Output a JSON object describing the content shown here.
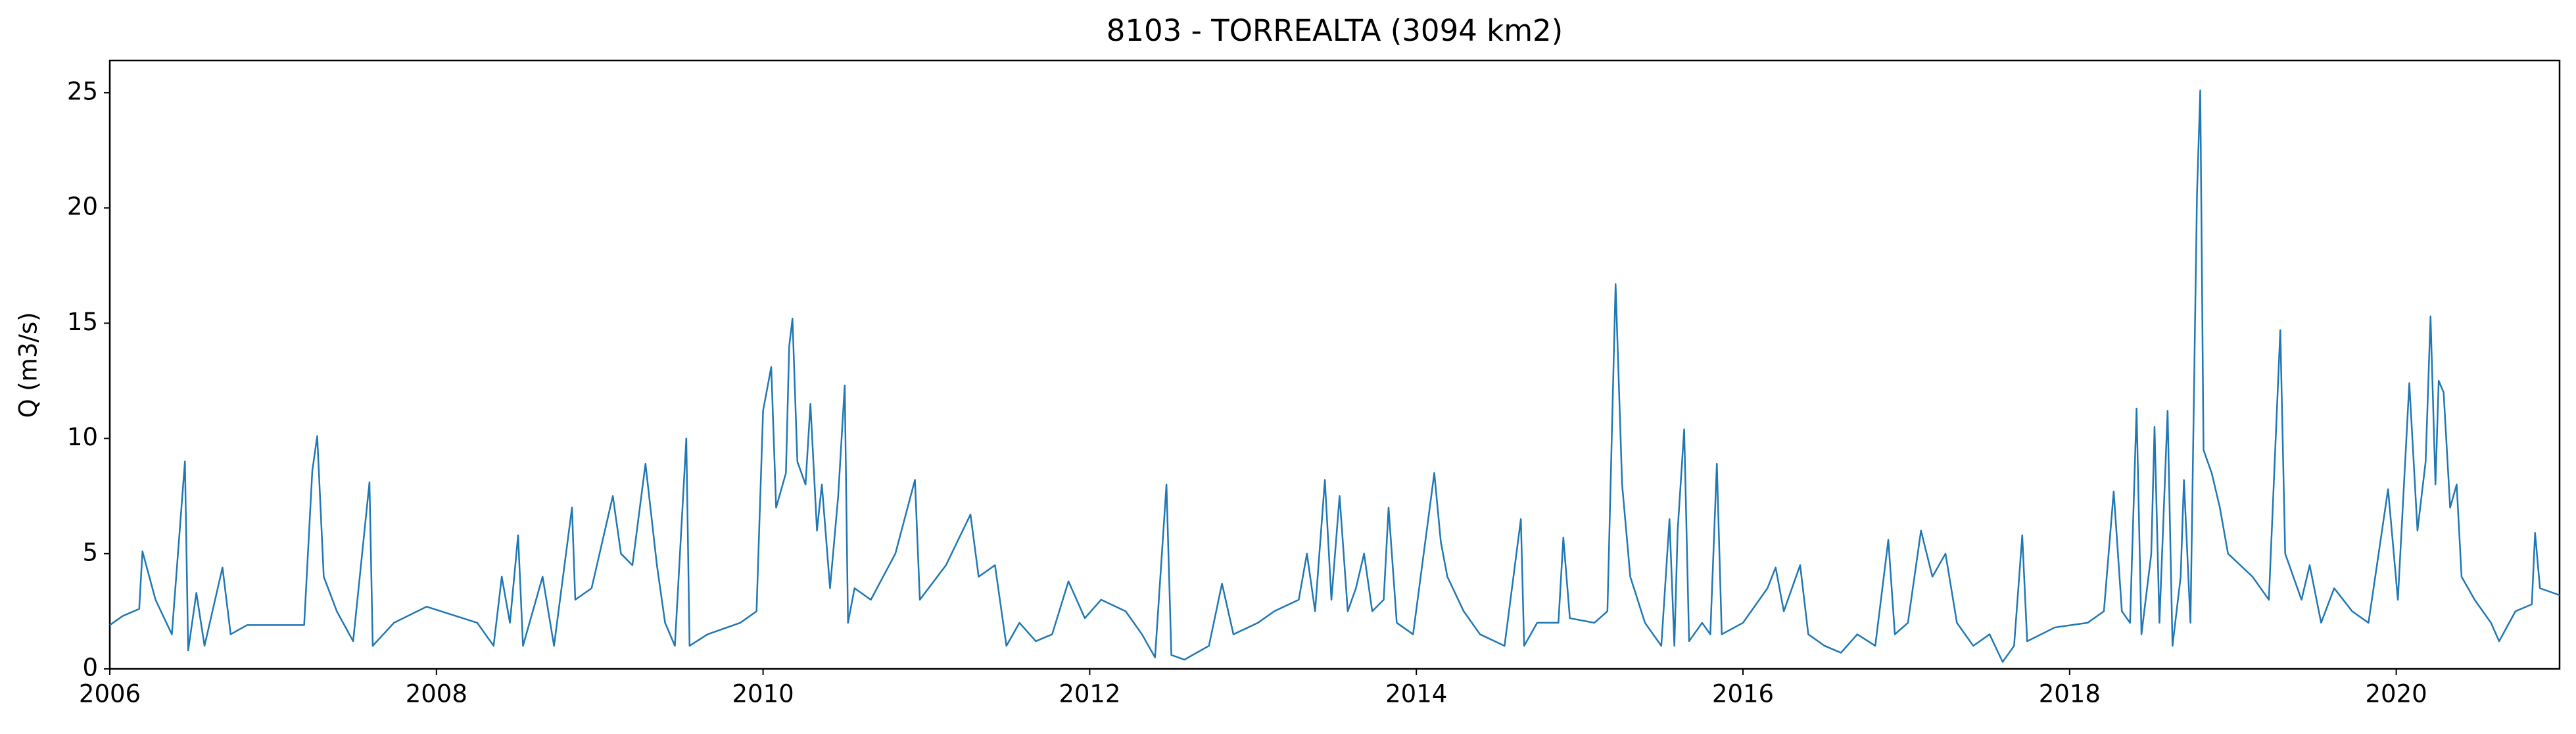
{
  "chart_data": {
    "type": "line",
    "title": "8103 - TORREALTA (3094 km2)",
    "y_label": "Q (m3/s)",
    "xlim": [
      2006,
      2021
    ],
    "xticks": [
      2006,
      2008,
      2010,
      2012,
      2014,
      2016,
      2018,
      2020
    ],
    "ylim": [
      0,
      26.4
    ],
    "yticks": [
      0,
      5,
      10,
      15,
      20,
      25
    ],
    "grid": false,
    "series": [
      {
        "color": "#1f77b4",
        "x": [
          2006.0,
          2006.08,
          2006.18,
          2006.2,
          2006.28,
          2006.38,
          2006.46,
          2006.48,
          2006.53,
          2006.58,
          2006.69,
          2006.74,
          2006.84,
          2007.19,
          2007.24,
          2007.27,
          2007.31,
          2007.39,
          2007.49,
          2007.59,
          2007.61,
          2007.74,
          2007.94,
          2008.25,
          2008.35,
          2008.4,
          2008.45,
          2008.5,
          2008.53,
          2008.65,
          2008.72,
          2008.83,
          2008.85,
          2008.95,
          2009.08,
          2009.13,
          2009.2,
          2009.28,
          2009.35,
          2009.4,
          2009.46,
          2009.53,
          2009.55,
          2009.66,
          2009.86,
          2009.96,
          2010.0,
          2010.05,
          2010.08,
          2010.14,
          2010.16,
          2010.18,
          2010.21,
          2010.26,
          2010.29,
          2010.33,
          2010.36,
          2010.41,
          2010.46,
          2010.5,
          2010.52,
          2010.56,
          2010.66,
          2010.81,
          2010.93,
          2010.96,
          2011.12,
          2011.27,
          2011.32,
          2011.42,
          2011.49,
          2011.57,
          2011.67,
          2011.77,
          2011.87,
          2011.97,
          2012.07,
          2012.22,
          2012.32,
          2012.4,
          2012.47,
          2012.5,
          2012.58,
          2012.73,
          2012.81,
          2012.88,
          2013.03,
          2013.13,
          2013.28,
          2013.33,
          2013.38,
          2013.44,
          2013.48,
          2013.53,
          2013.58,
          2013.63,
          2013.68,
          2013.73,
          2013.8,
          2013.83,
          2013.88,
          2013.98,
          2014.11,
          2014.15,
          2014.19,
          2014.29,
          2014.39,
          2014.54,
          2014.64,
          2014.66,
          2014.74,
          2014.87,
          2014.9,
          2014.94,
          2015.09,
          2015.17,
          2015.22,
          2015.26,
          2015.31,
          2015.4,
          2015.5,
          2015.55,
          2015.58,
          2015.6,
          2015.64,
          2015.67,
          2015.75,
          2015.8,
          2015.84,
          2015.87,
          2016.0,
          2016.15,
          2016.2,
          2016.25,
          2016.35,
          2016.4,
          2016.5,
          2016.6,
          2016.7,
          2016.81,
          2016.89,
          2016.93,
          2017.01,
          2017.09,
          2017.16,
          2017.24,
          2017.31,
          2017.41,
          2017.51,
          2017.59,
          2017.66,
          2017.71,
          2017.74,
          2017.91,
          2018.11,
          2018.21,
          2018.27,
          2018.32,
          2018.37,
          2018.41,
          2018.44,
          2018.5,
          2018.52,
          2018.55,
          2018.6,
          2018.63,
          2018.68,
          2018.7,
          2018.74,
          2018.78,
          2018.8,
          2018.82,
          2018.87,
          2018.92,
          2018.97,
          2019.12,
          2019.22,
          2019.29,
          2019.32,
          2019.42,
          2019.47,
          2019.54,
          2019.62,
          2019.73,
          2019.83,
          2019.95,
          2020.01,
          2020.08,
          2020.13,
          2020.18,
          2020.21,
          2020.24,
          2020.26,
          2020.29,
          2020.33,
          2020.37,
          2020.4,
          2020.48,
          2020.58,
          2020.63,
          2020.73,
          2020.83,
          2020.85,
          2020.88,
          2021.0
        ],
        "values": [
          1.9,
          2.3,
          2.6,
          5.1,
          3.0,
          1.5,
          9.0,
          0.8,
          3.3,
          1.0,
          4.4,
          1.5,
          1.9,
          1.9,
          8.6,
          10.1,
          4.0,
          2.5,
          1.2,
          8.1,
          1.0,
          2.0,
          2.7,
          2.0,
          1.0,
          4.0,
          2.0,
          5.8,
          1.0,
          4.0,
          1.0,
          7.0,
          3.0,
          3.5,
          7.5,
          5.0,
          4.5,
          8.9,
          4.5,
          2.0,
          1.0,
          10.0,
          1.0,
          1.5,
          2.0,
          2.5,
          11.2,
          13.1,
          7.0,
          8.5,
          14.0,
          15.2,
          9.0,
          8.0,
          11.5,
          6.0,
          8.0,
          3.5,
          7.5,
          12.3,
          2.0,
          3.5,
          3.0,
          5.0,
          8.2,
          3.0,
          4.5,
          6.7,
          4.0,
          4.5,
          1.0,
          2.0,
          1.2,
          1.5,
          3.8,
          2.2,
          3.0,
          2.5,
          1.5,
          0.5,
          8.0,
          0.6,
          0.4,
          1.0,
          3.7,
          1.5,
          2.0,
          2.5,
          3.0,
          5.0,
          2.5,
          8.2,
          3.0,
          7.5,
          2.5,
          3.5,
          5.0,
          2.5,
          3.0,
          7.0,
          2.0,
          1.5,
          8.5,
          5.5,
          4.0,
          2.5,
          1.5,
          1.0,
          6.5,
          1.0,
          2.0,
          2.0,
          5.7,
          2.2,
          2.0,
          2.5,
          16.7,
          8.0,
          4.0,
          2.0,
          1.0,
          6.5,
          1.0,
          6.0,
          10.4,
          1.2,
          2.0,
          1.5,
          8.9,
          1.5,
          2.0,
          3.5,
          4.4,
          2.5,
          4.5,
          1.5,
          1.0,
          0.7,
          1.5,
          1.0,
          5.6,
          1.5,
          2.0,
          6.0,
          4.0,
          5.0,
          2.0,
          1.0,
          1.5,
          0.3,
          1.0,
          5.8,
          1.2,
          1.8,
          2.0,
          2.5,
          7.7,
          2.5,
          2.0,
          11.3,
          1.5,
          5.0,
          10.5,
          2.0,
          11.2,
          1.0,
          4.0,
          8.2,
          2.0,
          20.6,
          25.1,
          9.5,
          8.5,
          7.0,
          5.0,
          4.0,
          3.0,
          14.7,
          5.0,
          3.0,
          4.5,
          2.0,
          3.5,
          2.5,
          2.0,
          7.8,
          3.0,
          12.4,
          6.0,
          9.0,
          15.3,
          8.0,
          12.5,
          12.0,
          7.0,
          8.0,
          4.0,
          3.0,
          2.0,
          1.2,
          2.5,
          2.8,
          5.9,
          3.5,
          3.2
        ]
      }
    ]
  }
}
